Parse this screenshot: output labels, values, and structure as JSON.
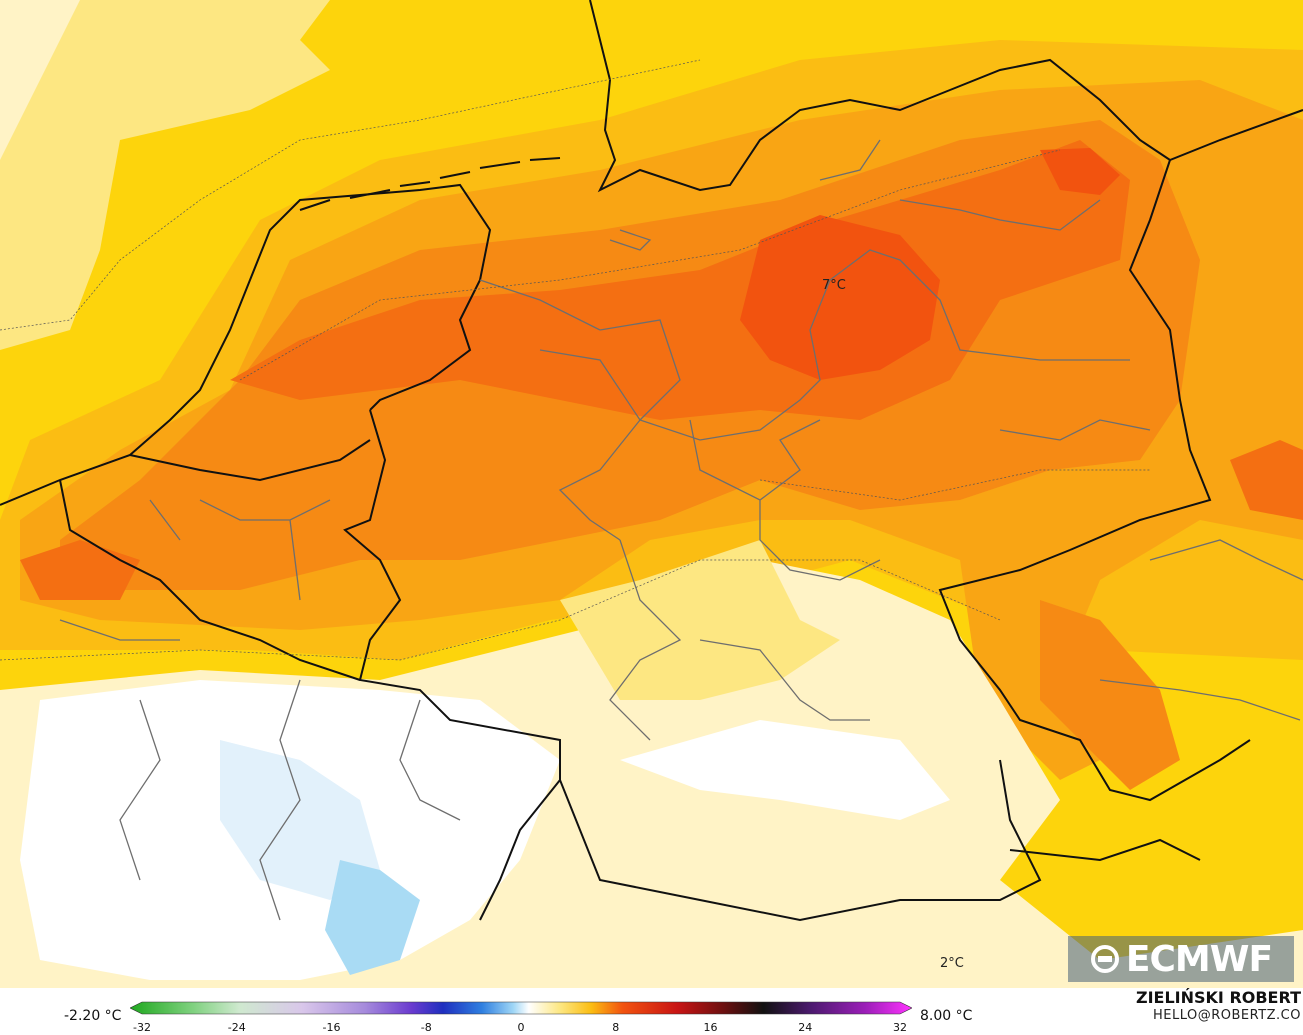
{
  "map": {
    "labels": [
      {
        "id": "center",
        "text": "7°C"
      },
      {
        "id": "south",
        "text": "2°C"
      }
    ],
    "colors": {
      "deep_orange": "#f2530f",
      "orange_red": "#f46f12",
      "orange": "#f68a14",
      "light_orange": "#f9a514",
      "amber": "#fbbd13",
      "yellow": "#fdd40c",
      "light_yellow": "#fde782",
      "pale_yellow": "#fff3c6",
      "white": "#ffffff",
      "pale_blue": "#e2f1fb",
      "light_blue": "#a9dbf4",
      "border": "#111111",
      "admin_border": "#6e6e6e"
    }
  },
  "logo": {
    "text": "ECMWF",
    "icon": "ecmwf-logo-icon"
  },
  "legend": {
    "min_label": "-2.20 °C",
    "max_label": "8.00 °C",
    "ticks": [
      "-32",
      "-24",
      "-16",
      "-8",
      "0",
      "8",
      "16",
      "24",
      "32"
    ],
    "range": [
      -32,
      32
    ]
  },
  "credit": {
    "name": "ZIELIŃSKI ROBERT",
    "email": "HELLO@ROBERTZ.CO"
  }
}
